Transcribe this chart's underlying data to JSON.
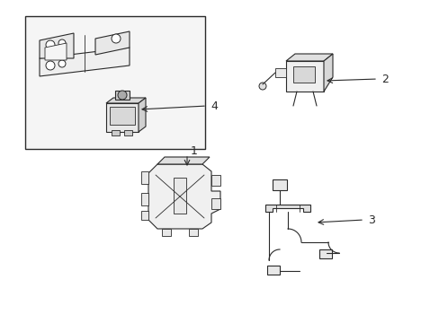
{
  "bg_color": "#ffffff",
  "line_color": "#2a2a2a",
  "fill_light": "#f8f8f8",
  "fill_mid": "#ececec",
  "fill_gray": "#d8d8d8",
  "label1": "1",
  "label2": "2",
  "label3": "3",
  "label4": "4"
}
